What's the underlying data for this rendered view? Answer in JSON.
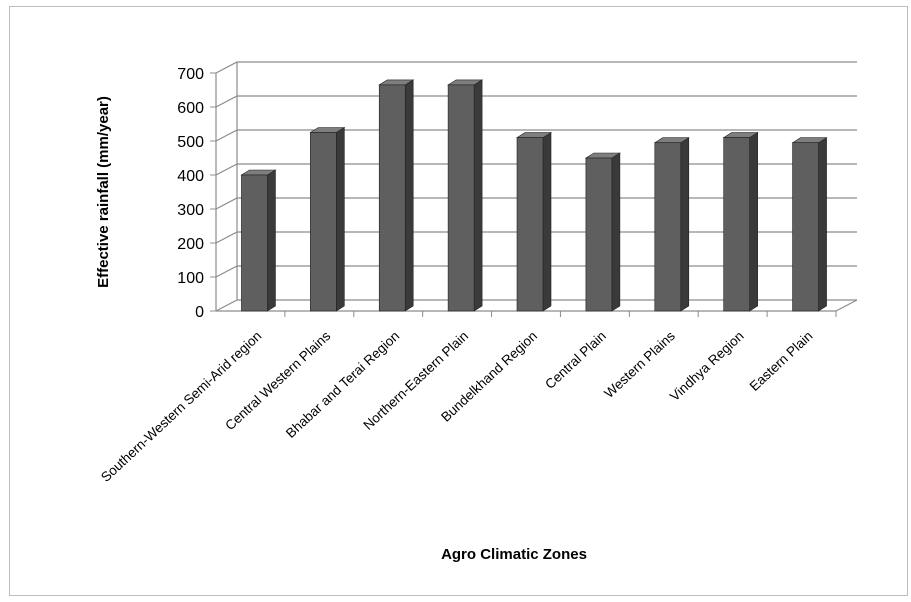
{
  "chart_data": {
    "type": "bar",
    "style": "3d-column",
    "title": "",
    "xlabel": "Agro Climatic Zones",
    "ylabel": "Effective rainfall (mm/year)",
    "ylim": [
      0,
      700
    ],
    "yticks": [
      0,
      100,
      200,
      300,
      400,
      500,
      600,
      700
    ],
    "grid": true,
    "legend": "none",
    "categories": [
      "Southern-Western Semi-Arid region",
      "Central Western Plains",
      "Bhabar and Terai Region",
      "Northern-Eastern Plain",
      "Bundelkhand Region",
      "Central Plain",
      "Western Plains",
      "Vindhya Region",
      "Eastern Plain"
    ],
    "values": [
      400,
      525,
      665,
      665,
      510,
      450,
      495,
      510,
      495
    ],
    "colors": {
      "bar_front": "#5f5f5f",
      "bar_side": "#3a3a3a",
      "bar_top": "#7e7e7e",
      "grid": "#8c8c8c"
    }
  }
}
